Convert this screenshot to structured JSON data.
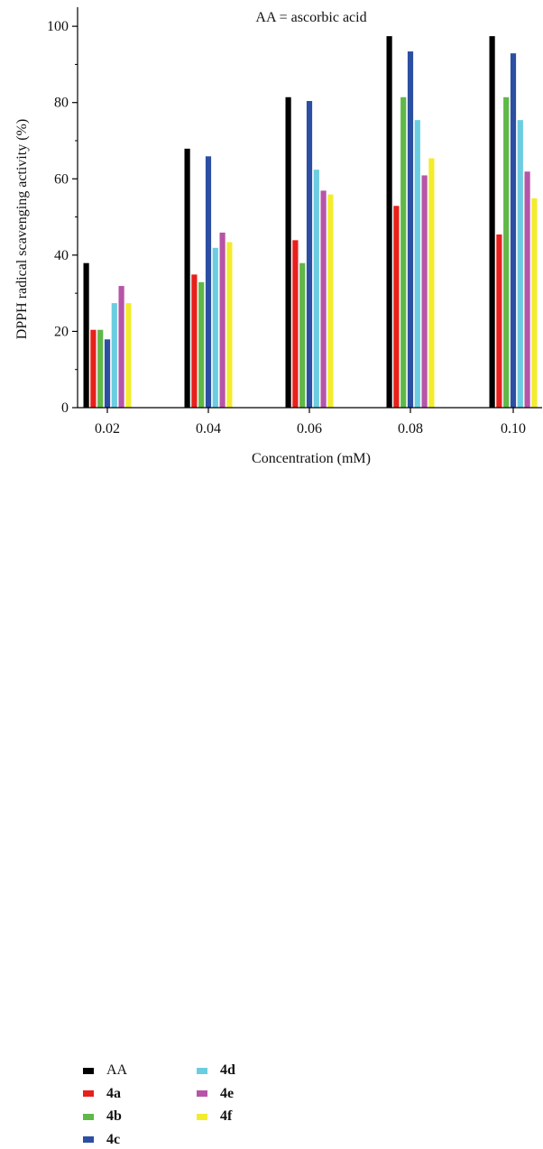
{
  "chart_data": {
    "type": "bar",
    "title": "",
    "annotation": "AA = ascorbic acid",
    "xlabel": "Concentration (mM)",
    "ylabel": "DPPH radical scavenging activity (%)",
    "ylim": [
      0,
      105
    ],
    "yticks": [
      0,
      20,
      40,
      60,
      80,
      100
    ],
    "categories": [
      "0.02",
      "0.04",
      "0.06",
      "0.08",
      "0.10"
    ],
    "series": [
      {
        "name": "AA",
        "color": "#000000",
        "bold": false,
        "values": [
          38,
          68,
          81.5,
          97.5,
          97.5
        ]
      },
      {
        "name": "4a",
        "color": "#e8201c",
        "bold": true,
        "values": [
          20.5,
          35,
          44,
          53,
          45.5
        ]
      },
      {
        "name": "4b",
        "color": "#5fb847",
        "bold": true,
        "values": [
          20.5,
          33,
          38,
          81.5,
          81.5
        ]
      },
      {
        "name": "4c",
        "color": "#2c4fa3",
        "bold": true,
        "values": [
          18,
          66,
          80.5,
          93.5,
          93
        ]
      },
      {
        "name": "4d",
        "color": "#6ccde0",
        "bold": true,
        "values": [
          27.5,
          42,
          62.5,
          75.5,
          75.5
        ]
      },
      {
        "name": "4e",
        "color": "#b655a8",
        "bold": true,
        "values": [
          32,
          46,
          57,
          61,
          62
        ]
      },
      {
        "name": "4f",
        "color": "#f2ec2e",
        "bold": true,
        "values": [
          27.5,
          43.5,
          56,
          65.5,
          55
        ]
      }
    ],
    "grid": false,
    "legend_position": "bottom-left"
  }
}
